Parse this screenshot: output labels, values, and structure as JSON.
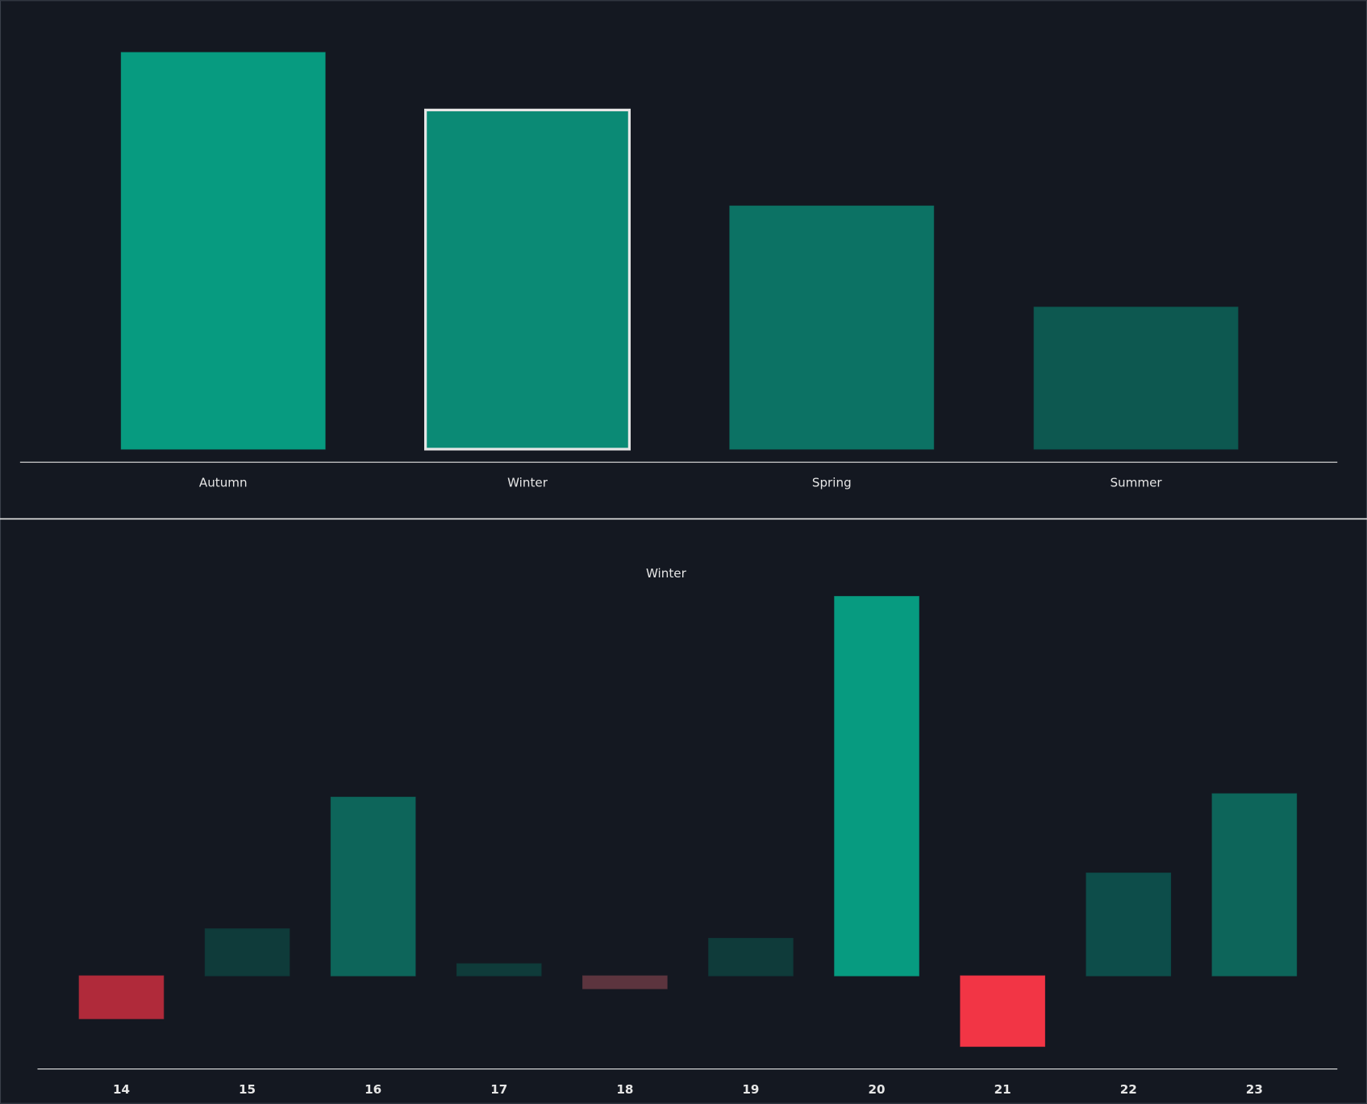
{
  "chart_data": [
    {
      "type": "bar",
      "categories": [
        "Autumn",
        "Winter",
        "Spring",
        "Summer"
      ],
      "values": [
        100,
        85.5,
        61.3,
        35.8
      ],
      "colors": [
        "#079b80",
        "#0b8a75",
        "#0c7264",
        "#0d5850"
      ],
      "selected": 1,
      "ylim": [
        0,
        100
      ]
    },
    {
      "type": "bar",
      "title": "Winter",
      "categories": [
        "14",
        "15",
        "16",
        "17",
        "18",
        "19",
        "20",
        "21",
        "22",
        "23"
      ],
      "values": [
        -11.3,
        12.4,
        47.1,
        3.2,
        -3.4,
        9.9,
        100,
        -18.6,
        27.1,
        48.0
      ],
      "colors": [
        "#b02a3a",
        "#0f3b3a",
        "#0d655a",
        "#0f3b3a",
        "#5c343e",
        "#0f3b3a",
        "#079b80",
        "#f23545",
        "#0d4d4a",
        "#0d655a"
      ],
      "ylim": [
        -25,
        100
      ]
    }
  ]
}
